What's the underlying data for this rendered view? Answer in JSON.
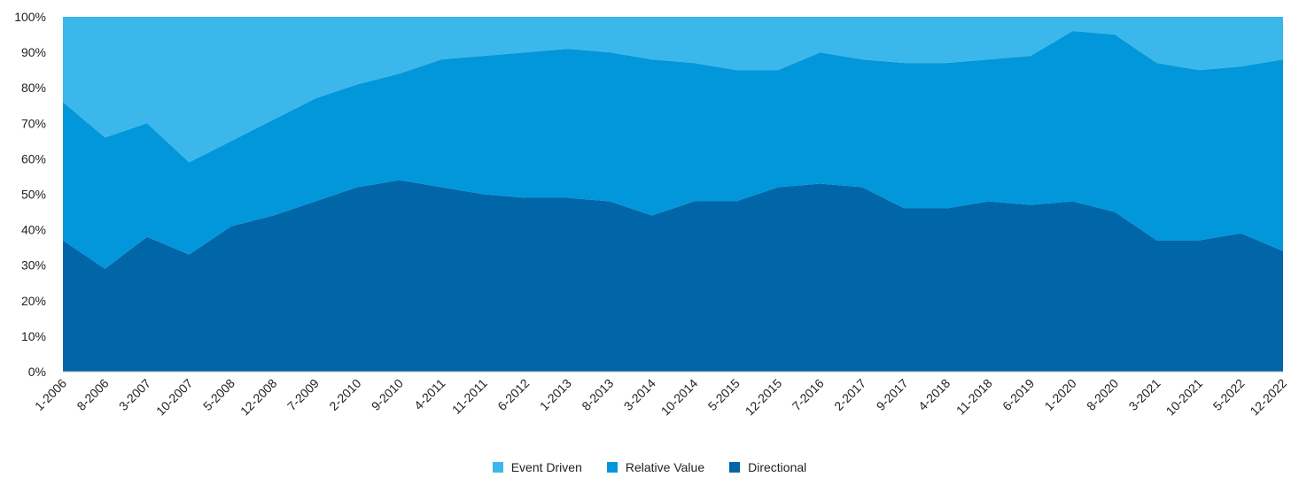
{
  "chart_data": {
    "type": "area",
    "stacked": true,
    "normalized": true,
    "ylim": [
      0,
      100
    ],
    "y_ticks": [
      "0%",
      "10%",
      "20%",
      "30%",
      "40%",
      "50%",
      "60%",
      "70%",
      "80%",
      "90%",
      "100%"
    ],
    "x_tick_labels": [
      "1-2006",
      "8-2006",
      "3-2007",
      "10-2007",
      "5-2008",
      "12-2008",
      "7-2009",
      "2-2010",
      "9-2010",
      "4-2011",
      "11-2011",
      "6-2012",
      "1-2013",
      "8-2013",
      "3-2014",
      "10-2014",
      "5-2015",
      "12-2015",
      "7-2016",
      "2-2017",
      "9-2017",
      "4-2018",
      "11-2018",
      "6-2019",
      "1-2020",
      "8-2020",
      "3-2021",
      "10-2021",
      "5-2022",
      "12-2022"
    ],
    "x": [
      "1-2006",
      "8-2006",
      "3-2007",
      "10-2007",
      "5-2008",
      "12-2008",
      "7-2009",
      "2-2010",
      "9-2010",
      "4-2011",
      "11-2011",
      "6-2012",
      "1-2013",
      "8-2013",
      "3-2014",
      "10-2014",
      "5-2015",
      "12-2015",
      "7-2016",
      "2-2017",
      "9-2017",
      "4-2018",
      "11-2018",
      "6-2019",
      "1-2020",
      "8-2020",
      "3-2021",
      "10-2021",
      "5-2022",
      "12-2022"
    ],
    "grid": false,
    "legend_position": "bottom-center",
    "series": [
      {
        "name": "Directional",
        "color": "#0066a8",
        "values": [
          37,
          29,
          38,
          33,
          41,
          44,
          48,
          52,
          54,
          52,
          50,
          49,
          49,
          48,
          44,
          48,
          48,
          52,
          53,
          52,
          46,
          46,
          48,
          47,
          48,
          45,
          37,
          37,
          39,
          34
        ]
      },
      {
        "name": "Relative Value",
        "color": "#0297da",
        "values": [
          39,
          37,
          32,
          26,
          24,
          27,
          29,
          29,
          30,
          36,
          39,
          41,
          42,
          42,
          44,
          39,
          37,
          33,
          37,
          36,
          41,
          41,
          40,
          42,
          48,
          50,
          50,
          48,
          47,
          54
        ]
      },
      {
        "name": "Event Driven",
        "color": "#3bb7eb",
        "values": [
          24,
          34,
          30,
          41,
          35,
          29,
          23,
          19,
          16,
          12,
          11,
          10,
          9,
          10,
          12,
          13,
          15,
          15,
          10,
          12,
          13,
          13,
          12,
          11,
          4,
          5,
          13,
          15,
          14,
          12
        ]
      }
    ],
    "legend": [
      {
        "label": "Event Driven",
        "color": "#3bb7eb"
      },
      {
        "label": "Relative Value",
        "color": "#0297da"
      },
      {
        "label": "Directional",
        "color": "#0066a8"
      }
    ]
  }
}
